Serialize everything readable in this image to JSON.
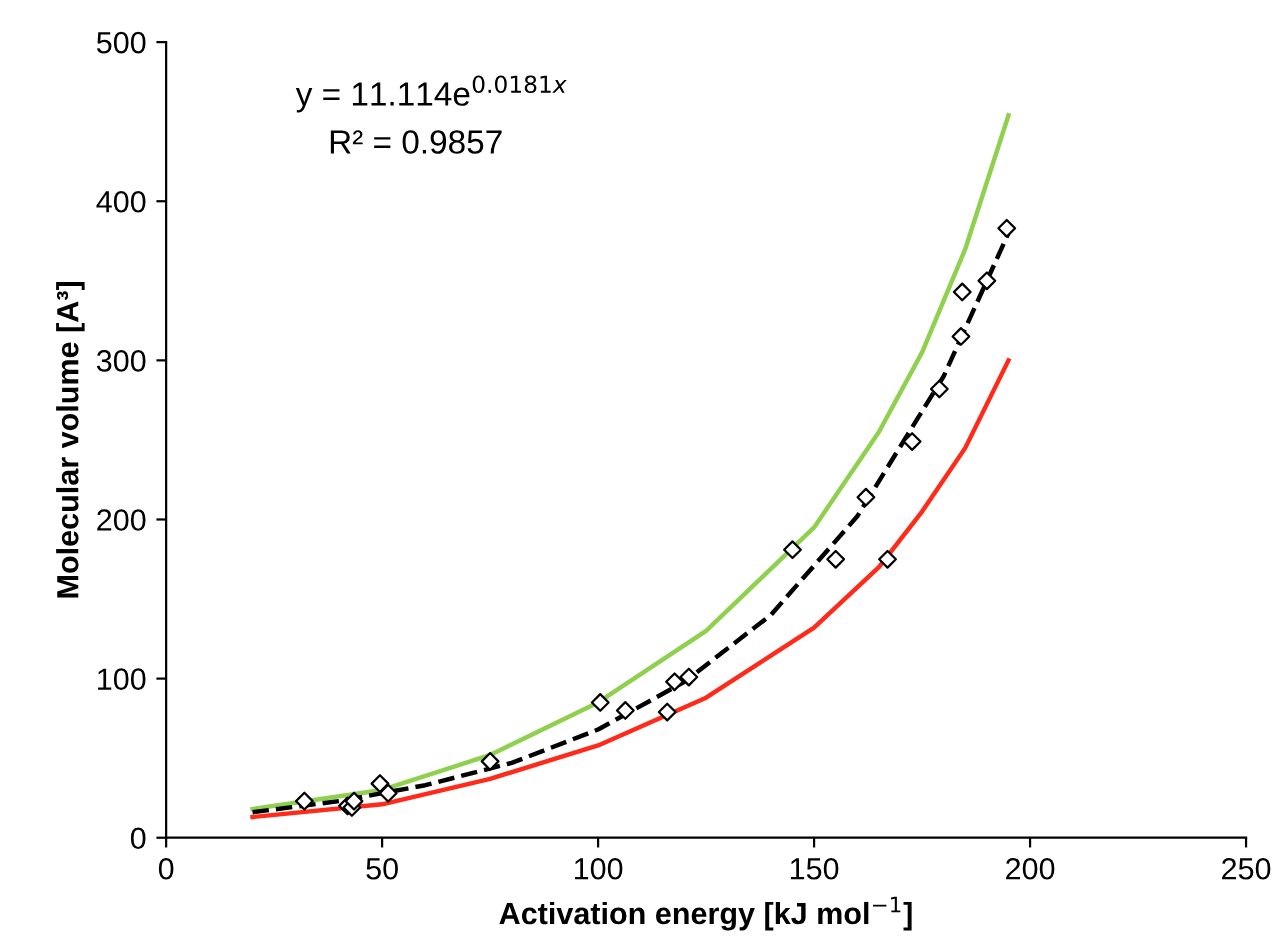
{
  "chart_data": {
    "type": "scatter",
    "xlabel": "Activation energy [kJ mol$^{−1}$]",
    "ylabel": "Molecular volume [A³]",
    "annotations": [
      "y = 11.114e$^{0.0181x}$",
      "R² = 0.9857"
    ],
    "xlim": [
      0,
      250
    ],
    "ylim": [
      0,
      500
    ],
    "xticks": [
      0,
      50,
      100,
      150,
      200,
      250
    ],
    "yticks": [
      0,
      100,
      200,
      300,
      400,
      500
    ],
    "grid": false,
    "legend": false,
    "series": [
      {
        "type": "line",
        "color": "#8fd14f",
        "line_style": "solid",
        "marker": "none",
        "x": [
          20,
          50,
          75,
          100,
          125,
          150,
          165,
          175,
          185,
          195
        ],
        "values": [
          18,
          30,
          52,
          85,
          130,
          195,
          255,
          305,
          370,
          454
        ]
      },
      {
        "type": "line",
        "color": "#ff2a1a",
        "line_style": "solid",
        "marker": "none",
        "x": [
          20,
          50,
          75,
          100,
          125,
          150,
          165,
          175,
          185,
          195
        ],
        "values": [
          13,
          21,
          37,
          58,
          88,
          132,
          170,
          205,
          245,
          300
        ]
      },
      {
        "type": "line",
        "color": "#000000",
        "line_style": "dashed",
        "marker": "none",
        "x": [
          20,
          40,
          60,
          80,
          100,
          120,
          140,
          160,
          180,
          195
        ],
        "values": [
          16,
          23,
          33,
          47,
          68,
          98,
          140,
          202,
          290,
          380
        ]
      },
      {
        "color": "#000000",
        "marker": "diamond",
        "x": [
          32,
          42,
          43,
          43.5,
          49.5,
          51.4,
          75,
          100.5,
          106.3,
          116,
          117.7,
          121,
          145,
          155,
          162,
          167,
          172.7,
          179,
          184,
          184.3,
          190,
          194.6
        ],
        "values": [
          23,
          20,
          19,
          23,
          34,
          28,
          48,
          85,
          80,
          79,
          98,
          101,
          181,
          175,
          214,
          175,
          249,
          282,
          315,
          343,
          350,
          383
        ]
      }
    ]
  }
}
